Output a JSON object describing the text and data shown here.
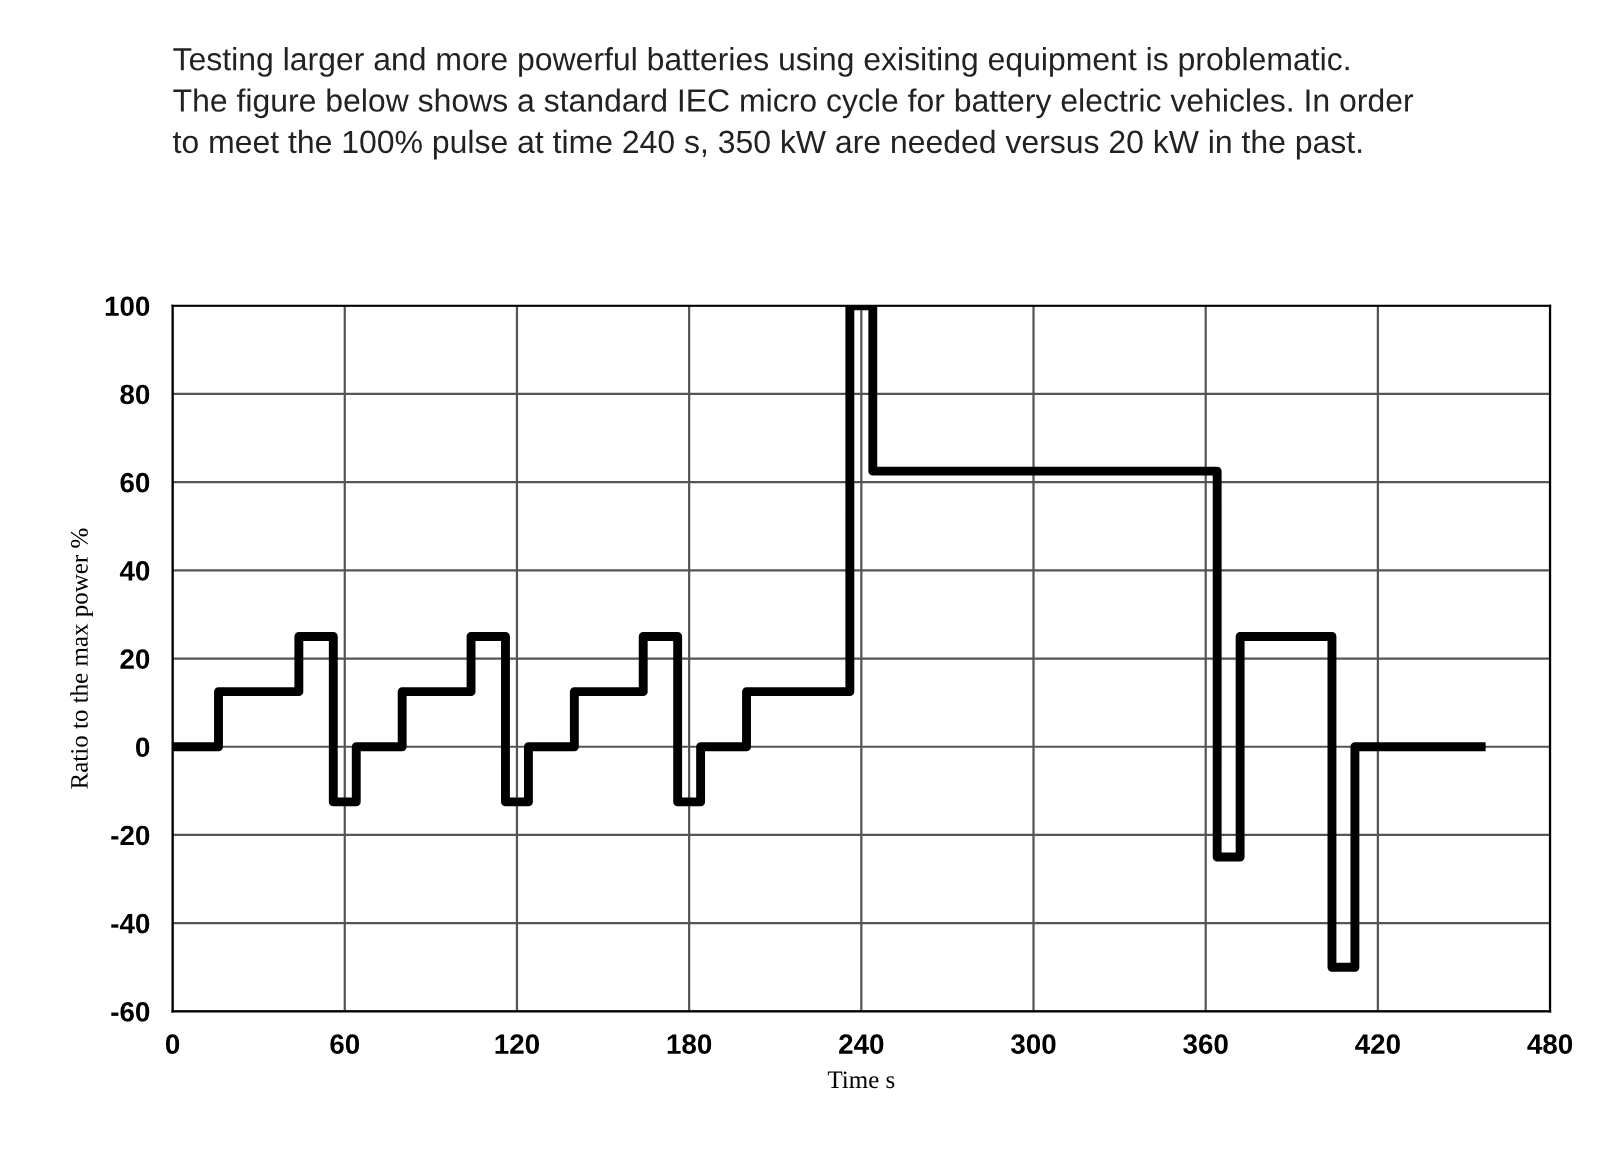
{
  "chart_data": {
    "type": "step",
    "title": "Testing larger and more powerful batteries using exisiting equipment is problematic.\nThe figure below shows a standard IEC micro cycle for battery electric vehicles. In order\nto meet the 100% pulse at time 240 s, 350 kW are needed versus 20 kW in the past.",
    "xlabel": "Time s",
    "ylabel": "Ratio to the max power %",
    "x": [
      0,
      16,
      44,
      56,
      64,
      80,
      104,
      116,
      124,
      140,
      164,
      176,
      184,
      200,
      236,
      244,
      364,
      372,
      404,
      412,
      456
    ],
    "series": [
      {
        "color": "#000000",
        "values": [
          0,
          12.5,
          25,
          -12.5,
          0,
          12.5,
          25,
          -12.5,
          0,
          12.5,
          25,
          -12.5,
          0,
          12.5,
          100,
          62.5,
          -25,
          25,
          -50,
          0,
          0
        ]
      }
    ],
    "xlim": [
      0,
      480
    ],
    "xticks": [
      0,
      60,
      120,
      180,
      240,
      300,
      360,
      420,
      480
    ],
    "ylim": [
      -60,
      100
    ],
    "yticks": [
      -60,
      -40,
      -20,
      0,
      20,
      40,
      60,
      80,
      100
    ],
    "grid": true,
    "marker": "none",
    "line_style": "solid"
  }
}
